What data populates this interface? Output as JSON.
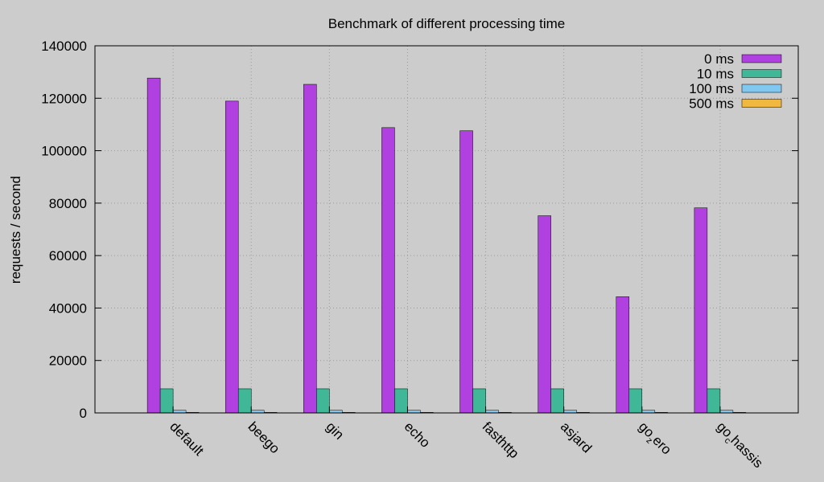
{
  "chart_data": {
    "type": "bar",
    "title": "Benchmark of different processing time",
    "xlabel": "",
    "ylabel": "requests / second",
    "ylim": [
      0,
      140000
    ],
    "yticks": [
      0,
      20000,
      40000,
      60000,
      80000,
      100000,
      120000,
      140000
    ],
    "grid": true,
    "legend_position": "top-right",
    "categories": [
      {
        "base": "default",
        "sub": "",
        "rest": ""
      },
      {
        "base": "beego",
        "sub": "",
        "rest": ""
      },
      {
        "base": "gin",
        "sub": "",
        "rest": ""
      },
      {
        "base": "echo",
        "sub": "",
        "rest": ""
      },
      {
        "base": "fasthttp",
        "sub": "",
        "rest": ""
      },
      {
        "base": "asjard",
        "sub": "",
        "rest": ""
      },
      {
        "base": "go",
        "sub": "z",
        "rest": "ero"
      },
      {
        "base": "go",
        "sub": "c",
        "rest": "hassis"
      }
    ],
    "series": [
      {
        "name": "0 ms",
        "color": "#b040e0",
        "values": [
          127700,
          118900,
          125300,
          108800,
          107600,
          75200,
          44300,
          78200
        ]
      },
      {
        "name": "10 ms",
        "color": "#40b898",
        "values": [
          9200,
          9200,
          9200,
          9200,
          9200,
          9200,
          9200,
          9200
        ]
      },
      {
        "name": "100 ms",
        "color": "#80c8f0",
        "values": [
          1000,
          1000,
          1000,
          1000,
          1000,
          1000,
          1000,
          1000
        ]
      },
      {
        "name": "500 ms",
        "color": "#f0b840",
        "values": [
          200,
          200,
          200,
          200,
          200,
          200,
          200,
          200
        ]
      }
    ]
  }
}
